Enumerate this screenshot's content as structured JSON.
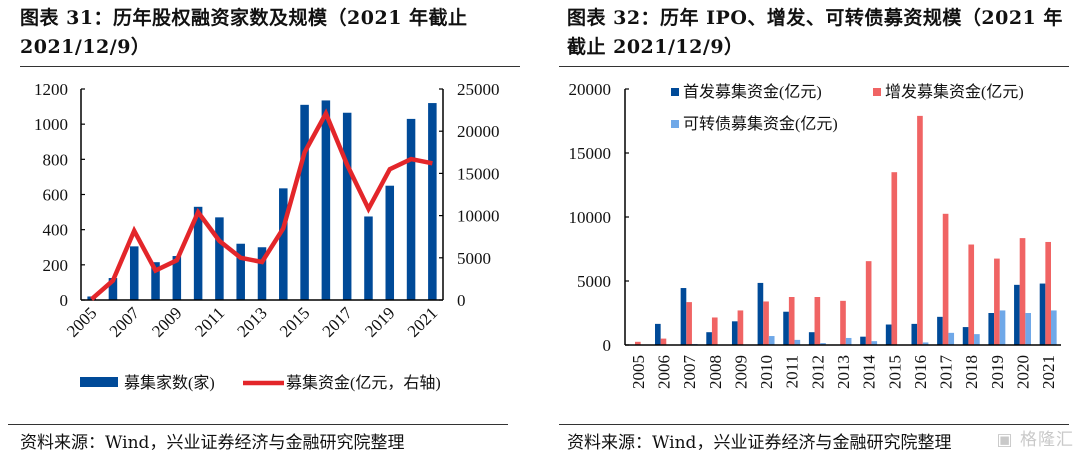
{
  "left": {
    "title": "图表 31：历年股权融资家数及规模（2021 年截止 2021/12/9）",
    "source": "资料来源：Wind，兴业证券经济与金融研究院整理"
  },
  "right": {
    "title": "图表 32：历年 IPO、增发、可转债募资规模（2021 年截止 2021/12/9）",
    "source": "资料来源：Wind，兴业证券经济与金融研究院整理",
    "watermark": "格隆汇"
  },
  "chart_data": [
    {
      "type": "bar",
      "title": "历年股权融资家数及规模（2021 年截止 2021/12/9）",
      "categories": [
        "2005",
        "2006",
        "2007",
        "2008",
        "2009",
        "2010",
        "2011",
        "2012",
        "2013",
        "2014",
        "2015",
        "2016",
        "2017",
        "2018",
        "2019",
        "2020",
        "2021"
      ],
      "x_tick_labels": [
        "2005",
        "2007",
        "2009",
        "2011",
        "2013",
        "2015",
        "2017",
        "2019",
        "2021"
      ],
      "ylim": [
        0,
        1200
      ],
      "y_ticks": [
        "0",
        "200",
        "400",
        "600",
        "800",
        "1000",
        "1200"
      ],
      "y2lim": [
        0,
        25000
      ],
      "y2_ticks": [
        "0",
        "5000",
        "10000",
        "15000",
        "20000",
        "25000"
      ],
      "legend_position": "bottom",
      "series": [
        {
          "name": "募集家数(家)",
          "kind": "bar",
          "axis": "left",
          "color": "#004a98",
          "values": [
            20,
            125,
            305,
            215,
            250,
            530,
            470,
            320,
            300,
            635,
            1110,
            1135,
            1065,
            475,
            650,
            1030,
            1120
          ]
        },
        {
          "name": "募集资金(亿元，右轴)",
          "kind": "line",
          "axis": "right",
          "color": "#e3262a",
          "values": [
            100,
            2300,
            8200,
            3500,
            4700,
            10400,
            7000,
            5000,
            4500,
            8500,
            17500,
            22100,
            16000,
            10800,
            15500,
            16700,
            16200
          ]
        }
      ]
    },
    {
      "type": "bar",
      "title": "历年 IPO、增发、可转债募资规模（2021 年截止 2021/12/9）",
      "categories": [
        "2005",
        "2006",
        "2007",
        "2008",
        "2009",
        "2010",
        "2011",
        "2012",
        "2013",
        "2014",
        "2015",
        "2016",
        "2017",
        "2018",
        "2019",
        "2020",
        "2021"
      ],
      "ylim": [
        0,
        20000
      ],
      "y_ticks": [
        "0",
        "5000",
        "10000",
        "15000",
        "20000"
      ],
      "legend_position": "top",
      "series": [
        {
          "name": "首发募集资金(亿元)",
          "color": "#004a98",
          "values": [
            0,
            1650,
            4450,
            1000,
            1850,
            4850,
            2600,
            1000,
            0,
            650,
            1600,
            1650,
            2200,
            1400,
            2500,
            4700,
            4800
          ]
        },
        {
          "name": "增发募集资金(亿元)",
          "color": "#f06464",
          "values": [
            250,
            500,
            3350,
            2150,
            2700,
            3400,
            3750,
            3750,
            3450,
            6550,
            13500,
            17900,
            10250,
            7850,
            6750,
            8350,
            8050
          ]
        },
        {
          "name": "可转债募集资金(亿元)",
          "color": "#6fa8e8",
          "values": [
            0,
            0,
            80,
            0,
            0,
            700,
            400,
            150,
            550,
            300,
            0,
            200,
            950,
            850,
            2700,
            2500,
            2700
          ]
        }
      ]
    }
  ]
}
